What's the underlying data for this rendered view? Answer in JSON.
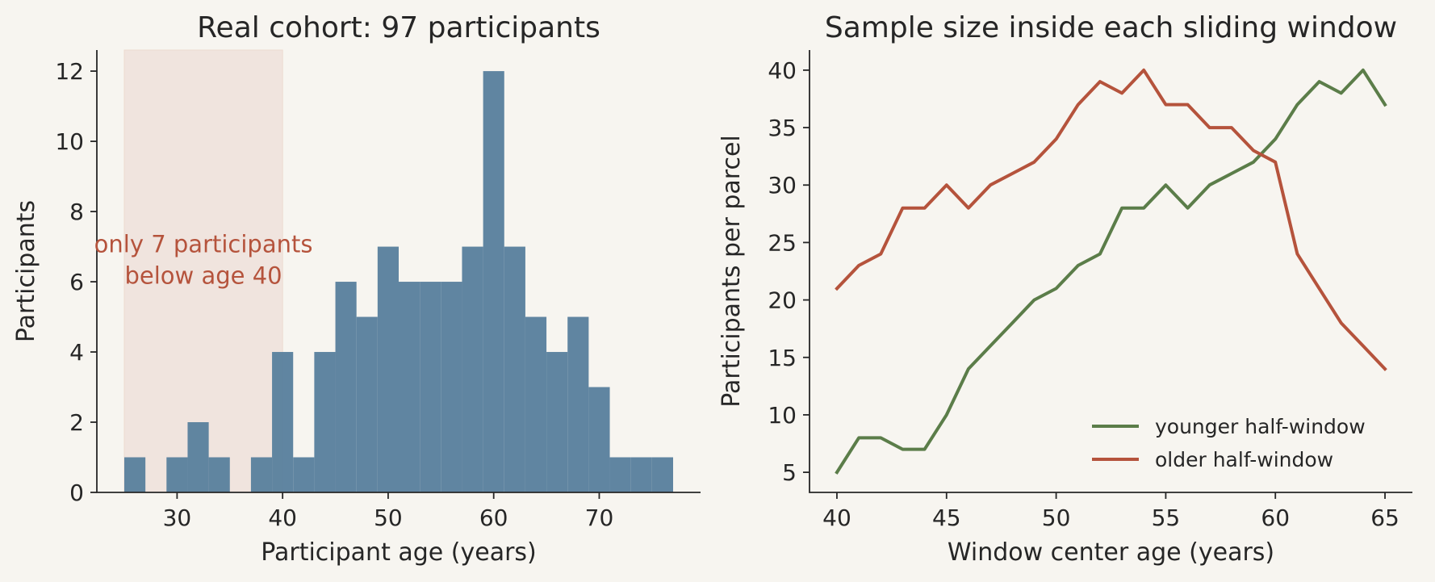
{
  "colors": {
    "background": "#f7f5f0",
    "bar": "#5b819e",
    "shade": "#f0e4de",
    "annotation": "#b5533c",
    "younger": "#5b7d49",
    "older": "#b5533c"
  },
  "chart_data": [
    {
      "type": "bar",
      "title": "Real cohort: 97 participants",
      "xlabel": "Participant age (years)",
      "ylabel": "Participants",
      "xlim": [
        22.4,
        79.6
      ],
      "ylim": [
        0,
        12.6
      ],
      "xticks": [
        30,
        40,
        50,
        60,
        70
      ],
      "yticks": [
        0,
        2,
        4,
        6,
        8,
        10,
        12
      ],
      "bin_width": 2,
      "bins": [
        {
          "start": 25,
          "count": 1
        },
        {
          "start": 27,
          "count": 0
        },
        {
          "start": 29,
          "count": 1
        },
        {
          "start": 31,
          "count": 2
        },
        {
          "start": 33,
          "count": 1
        },
        {
          "start": 35,
          "count": 0
        },
        {
          "start": 37,
          "count": 1
        },
        {
          "start": 39,
          "count": 4
        },
        {
          "start": 41,
          "count": 1
        },
        {
          "start": 43,
          "count": 4
        },
        {
          "start": 45,
          "count": 6
        },
        {
          "start": 47,
          "count": 5
        },
        {
          "start": 49,
          "count": 7
        },
        {
          "start": 51,
          "count": 6
        },
        {
          "start": 53,
          "count": 6
        },
        {
          "start": 55,
          "count": 6
        },
        {
          "start": 57,
          "count": 7
        },
        {
          "start": 59,
          "count": 12
        },
        {
          "start": 61,
          "count": 7
        },
        {
          "start": 63,
          "count": 5
        },
        {
          "start": 65,
          "count": 4
        },
        {
          "start": 67,
          "count": 5
        },
        {
          "start": 69,
          "count": 3
        },
        {
          "start": 71,
          "count": 1
        },
        {
          "start": 73,
          "count": 1
        },
        {
          "start": 75,
          "count": 1
        }
      ],
      "shaded_region": {
        "x": [
          25,
          40
        ]
      },
      "annotation": {
        "lines": [
          "only 7 participants",
          "below age 40"
        ],
        "x": 32.5,
        "y": 6.8
      }
    },
    {
      "type": "line",
      "title": "Sample size inside each sliding window",
      "xlabel": "Window center age (years)",
      "ylabel": "Participants per parcel",
      "xlim": [
        38.75,
        66.25
      ],
      "ylim": [
        3.25,
        41.75
      ],
      "xticks": [
        40,
        45,
        50,
        55,
        60,
        65
      ],
      "yticks": [
        5,
        10,
        15,
        20,
        25,
        30,
        35,
        40
      ],
      "x": [
        40,
        41,
        42,
        43,
        44,
        45,
        46,
        47,
        48,
        49,
        50,
        51,
        52,
        53,
        54,
        55,
        56,
        57,
        58,
        59,
        60,
        61,
        62,
        63,
        64,
        65
      ],
      "series": [
        {
          "name": "younger half-window",
          "values": [
            5,
            8,
            8,
            7,
            7,
            10,
            14,
            16,
            18,
            20,
            21,
            23,
            24,
            28,
            28,
            30,
            28,
            30,
            31,
            32,
            34,
            37,
            39,
            38,
            40,
            37
          ]
        },
        {
          "name": "older half-window",
          "values": [
            21,
            23,
            24,
            28,
            28,
            30,
            28,
            30,
            31,
            32,
            34,
            37,
            39,
            38,
            40,
            37,
            37,
            35,
            35,
            33,
            32,
            24,
            21,
            18,
            16,
            14
          ]
        }
      ],
      "legend": "bottom-right"
    }
  ]
}
